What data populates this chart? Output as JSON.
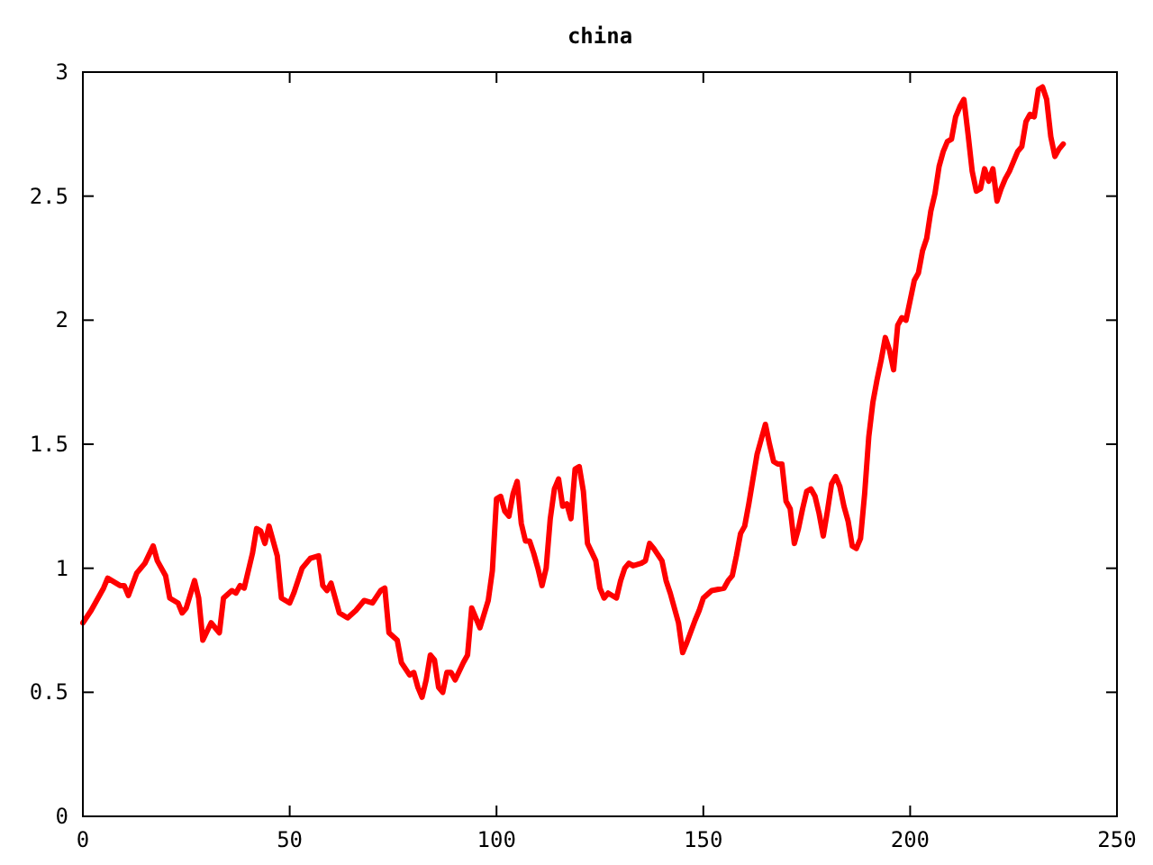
{
  "chart_data": {
    "type": "line",
    "title": "china",
    "xlim": [
      0,
      250
    ],
    "xticks": [
      0,
      50,
      100,
      150,
      200,
      250
    ],
    "ylim": [
      0,
      3
    ],
    "yticks": [
      0,
      0.5,
      1,
      1.5,
      2,
      2.5,
      3
    ],
    "grid": false,
    "line_style": "solid",
    "marker": "none",
    "series": [
      {
        "color": "#ff0000",
        "x": [
          0,
          2,
          5,
          6,
          9,
          10,
          11,
          13,
          15,
          17,
          18,
          20,
          21,
          23,
          24,
          25,
          27,
          28,
          29,
          31,
          33,
          34,
          36,
          37,
          38,
          39,
          41,
          42,
          43,
          44,
          45,
          47,
          48,
          50,
          51,
          53,
          55,
          57,
          58,
          59,
          60,
          62,
          64,
          66,
          68,
          70,
          72,
          73,
          74,
          76,
          77,
          79,
          80,
          81,
          82,
          83,
          84,
          85,
          86,
          87,
          88,
          89,
          90,
          92,
          93,
          94,
          95,
          96,
          98,
          99,
          100,
          101,
          102,
          103,
          104,
          105,
          106,
          107,
          108,
          109,
          110,
          111,
          112,
          113,
          114,
          115,
          116,
          117,
          118,
          119,
          120,
          121,
          122,
          124,
          125,
          126,
          127,
          129,
          130,
          131,
          132,
          133,
          135,
          136,
          137,
          138,
          140,
          141,
          142,
          144,
          145,
          146,
          148,
          149,
          150,
          152,
          155,
          156,
          157,
          158,
          159,
          160,
          161,
          162,
          163,
          164,
          165,
          166,
          167,
          168,
          169,
          170,
          171,
          172,
          173,
          174,
          175,
          176,
          177,
          178,
          179,
          180,
          181,
          182,
          183,
          184,
          185,
          186,
          187,
          188,
          189,
          190,
          191,
          192,
          193,
          194,
          195,
          196,
          197,
          198,
          199,
          200,
          201,
          202,
          203,
          204,
          205,
          206,
          207,
          208,
          209,
          210,
          211,
          212,
          213,
          214,
          215,
          216,
          217,
          218,
          219,
          220,
          221,
          222,
          223,
          224,
          225,
          226,
          227,
          228,
          229,
          230,
          231,
          232,
          233,
          234,
          235,
          236,
          237
        ],
        "values": [
          0.78,
          0.83,
          0.92,
          0.96,
          0.93,
          0.93,
          0.89,
          0.98,
          1.02,
          1.09,
          1.03,
          0.97,
          0.88,
          0.86,
          0.82,
          0.84,
          0.95,
          0.88,
          0.71,
          0.78,
          0.74,
          0.88,
          0.91,
          0.9,
          0.93,
          0.92,
          1.06,
          1.16,
          1.15,
          1.1,
          1.17,
          1.05,
          0.88,
          0.86,
          0.9,
          1.0,
          1.04,
          1.05,
          0.93,
          0.91,
          0.94,
          0.82,
          0.8,
          0.83,
          0.87,
          0.86,
          0.91,
          0.92,
          0.74,
          0.71,
          0.62,
          0.57,
          0.58,
          0.52,
          0.48,
          0.55,
          0.65,
          0.63,
          0.52,
          0.5,
          0.58,
          0.58,
          0.55,
          0.62,
          0.65,
          0.84,
          0.8,
          0.76,
          0.87,
          0.99,
          1.28,
          1.29,
          1.23,
          1.21,
          1.3,
          1.35,
          1.18,
          1.11,
          1.11,
          1.06,
          1.0,
          0.93,
          1.0,
          1.2,
          1.32,
          1.36,
          1.25,
          1.26,
          1.2,
          1.4,
          1.41,
          1.31,
          1.1,
          1.03,
          0.92,
          0.88,
          0.9,
          0.88,
          0.95,
          1.0,
          1.02,
          1.01,
          1.02,
          1.03,
          1.1,
          1.08,
          1.03,
          0.95,
          0.9,
          0.78,
          0.66,
          0.7,
          0.79,
          0.83,
          0.88,
          0.91,
          0.92,
          0.95,
          0.97,
          1.05,
          1.14,
          1.17,
          1.26,
          1.36,
          1.46,
          1.52,
          1.58,
          1.5,
          1.43,
          1.42,
          1.42,
          1.27,
          1.24,
          1.1,
          1.16,
          1.24,
          1.31,
          1.32,
          1.29,
          1.22,
          1.13,
          1.23,
          1.34,
          1.37,
          1.33,
          1.25,
          1.19,
          1.09,
          1.08,
          1.12,
          1.3,
          1.53,
          1.67,
          1.76,
          1.84,
          1.93,
          1.88,
          1.8,
          1.98,
          2.01,
          2.0,
          2.08,
          2.16,
          2.19,
          2.28,
          2.33,
          2.44,
          2.51,
          2.62,
          2.68,
          2.72,
          2.73,
          2.82,
          2.86,
          2.89,
          2.75,
          2.6,
          2.52,
          2.53,
          2.61,
          2.56,
          2.61,
          2.48,
          2.53,
          2.57,
          2.6,
          2.64,
          2.68,
          2.7,
          2.8,
          2.83,
          2.82,
          2.93,
          2.94,
          2.89,
          2.74,
          2.66,
          2.69,
          2.71
        ]
      }
    ]
  }
}
